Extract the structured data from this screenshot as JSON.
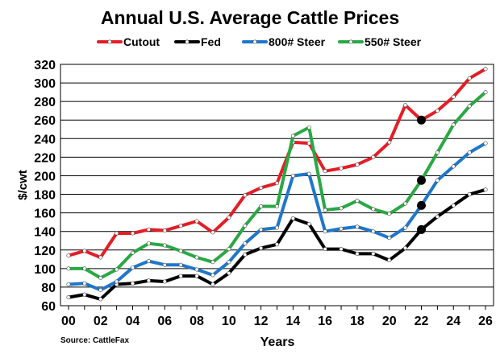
{
  "chart_data": {
    "type": "line",
    "title": "Annual U.S. Average Cattle Prices",
    "xlabel": "Years",
    "ylabel": "$/cwt",
    "source": "Source: CattleFax",
    "ylim": [
      60,
      320
    ],
    "yticks": [
      60,
      80,
      100,
      120,
      140,
      160,
      180,
      200,
      220,
      240,
      260,
      280,
      300,
      320
    ],
    "x": [
      0,
      1,
      2,
      3,
      4,
      5,
      6,
      7,
      8,
      9,
      10,
      11,
      12,
      13,
      14,
      15,
      16,
      17,
      18,
      19,
      20,
      21,
      22,
      23,
      24,
      25,
      26
    ],
    "xtick_values": [
      0,
      2,
      4,
      6,
      8,
      10,
      12,
      14,
      16,
      18,
      20,
      22,
      24,
      26
    ],
    "xtick_labels": [
      "00",
      "02",
      "04",
      "06",
      "08",
      "10",
      "12",
      "14",
      "16",
      "18",
      "20",
      "22",
      "24",
      "26"
    ],
    "grid": true,
    "legend_position": "top",
    "highlight_x": 22,
    "series": [
      {
        "name": "Cutout",
        "color": "#e41e26",
        "values": [
          114,
          119,
          112,
          138,
          138,
          142,
          141,
          146,
          151,
          139,
          155,
          179,
          187,
          192,
          236,
          235,
          205,
          208,
          212,
          220,
          236,
          276,
          260,
          270,
          285,
          305,
          315
        ]
      },
      {
        "name": "Fed",
        "color": "#000000",
        "values": [
          69,
          72,
          67,
          83,
          84,
          87,
          86,
          92,
          92,
          83,
          95,
          115,
          122,
          126,
          154,
          148,
          121,
          121,
          116,
          116,
          109,
          122,
          142,
          156,
          168,
          180,
          185
        ]
      },
      {
        "name": "800# Steer",
        "color": "#1f77c9",
        "values": [
          83,
          84,
          77,
          86,
          101,
          108,
          104,
          104,
          99,
          93,
          107,
          127,
          142,
          144,
          200,
          202,
          140,
          143,
          145,
          140,
          133,
          144,
          168,
          195,
          210,
          225,
          235
        ]
      },
      {
        "name": "550# Steer",
        "color": "#29a844",
        "values": [
          100,
          100,
          90,
          99,
          117,
          127,
          125,
          119,
          112,
          107,
          121,
          146,
          167,
          167,
          243,
          252,
          163,
          165,
          173,
          164,
          159,
          170,
          195,
          225,
          255,
          275,
          290
        ]
      }
    ]
  }
}
